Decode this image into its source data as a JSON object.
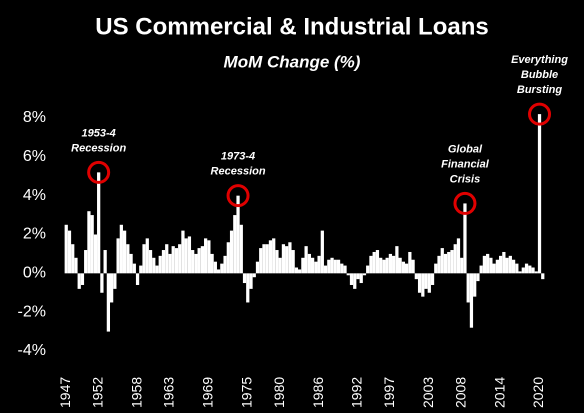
{
  "chart_data": {
    "type": "bar",
    "title": "US Commercial & Industrial Loans",
    "subtitle": "MoM Change (%)",
    "x": [
      1947,
      1947.5,
      1948,
      1948.5,
      1949,
      1949.5,
      1950,
      1950.5,
      1951,
      1951.5,
      1952,
      1952.5,
      1953,
      1953.5,
      1954,
      1954.5,
      1955,
      1955.5,
      1956,
      1956.5,
      1957,
      1957.5,
      1958,
      1958.5,
      1959,
      1959.5,
      1960,
      1960.5,
      1961,
      1961.5,
      1962,
      1962.5,
      1963,
      1963.5,
      1964,
      1964.5,
      1965,
      1965.5,
      1966,
      1966.5,
      1967,
      1967.5,
      1968,
      1968.5,
      1969,
      1969.5,
      1970,
      1970.5,
      1971,
      1971.5,
      1972,
      1972.5,
      1973,
      1973.5,
      1974,
      1974.5,
      1975,
      1975.5,
      1976,
      1976.5,
      1977,
      1977.5,
      1978,
      1978.5,
      1979,
      1979.5,
      1980,
      1980.5,
      1981,
      1981.5,
      1982,
      1982.5,
      1983,
      1983.5,
      1984,
      1984.5,
      1985,
      1985.5,
      1986,
      1986.5,
      1987,
      1987.5,
      1988,
      1988.5,
      1989,
      1989.5,
      1990,
      1990.5,
      1991,
      1991.5,
      1992,
      1992.5,
      1993,
      1993.5,
      1994,
      1994.5,
      1995,
      1995.5,
      1996,
      1996.5,
      1997,
      1997.5,
      1998,
      1998.5,
      1999,
      1999.5,
      2000,
      2000.5,
      2001,
      2001.5,
      2002,
      2002.5,
      2003,
      2003.5,
      2004,
      2004.5,
      2005,
      2005.5,
      2006,
      2006.5,
      2007,
      2007.5,
      2008,
      2008.5,
      2009,
      2009.5,
      2010,
      2010.5,
      2011,
      2011.5,
      2012,
      2012.5,
      2013,
      2013.5,
      2014,
      2014.5,
      2015,
      2015.5,
      2016,
      2016.5,
      2017,
      2017.5,
      2018,
      2018.5,
      2019,
      2019.5,
      2020,
      2020.5
    ],
    "values": [
      2.5,
      2.2,
      1.5,
      0.8,
      -0.8,
      -0.6,
      1.2,
      3.2,
      3.0,
      2.0,
      5.2,
      -1.0,
      1.2,
      -3.0,
      -1.5,
      -0.8,
      1.8,
      2.5,
      2.2,
      1.5,
      1.0,
      0.5,
      -0.6,
      0.4,
      1.5,
      1.8,
      1.2,
      0.8,
      0.4,
      0.9,
      1.2,
      1.5,
      1.0,
      1.4,
      1.3,
      1.5,
      2.2,
      1.8,
      1.9,
      1.2,
      1.0,
      1.3,
      1.4,
      1.8,
      1.7,
      1.0,
      0.6,
      0.2,
      0.5,
      0.9,
      1.6,
      2.2,
      3.0,
      4.0,
      2.5,
      -0.5,
      -1.5,
      -0.8,
      -0.2,
      0.6,
      1.3,
      1.5,
      1.5,
      1.7,
      1.8,
      1.2,
      0.8,
      1.5,
      1.4,
      1.6,
      1.2,
      0.3,
      0.2,
      0.8,
      1.4,
      1.0,
      0.8,
      0.6,
      0.9,
      2.2,
      0.4,
      0.7,
      0.8,
      0.7,
      0.7,
      0.5,
      0.4,
      -0.1,
      -0.6,
      -0.8,
      -0.3,
      -0.5,
      -0.1,
      0.4,
      0.9,
      1.1,
      1.2,
      0.8,
      0.7,
      0.8,
      1.0,
      0.9,
      1.4,
      0.8,
      0.6,
      0.5,
      1.1,
      0.7,
      -0.3,
      -1.0,
      -1.2,
      -0.8,
      -1.0,
      -0.6,
      0.5,
      0.9,
      1.3,
      1.0,
      1.1,
      1.2,
      1.5,
      1.8,
      0.8,
      3.6,
      -1.5,
      -2.8,
      -1.2,
      -0.4,
      0.4,
      0.9,
      1.0,
      0.8,
      0.5,
      0.7,
      0.9,
      1.1,
      0.8,
      0.9,
      0.7,
      0.5,
      0.1,
      0.3,
      0.5,
      0.4,
      0.3,
      0.1,
      8.2,
      -0.3
    ],
    "color": "#ffffff",
    "xlim": [
      1946.5,
      2021
    ],
    "xticks": [
      1947,
      1952,
      1958,
      1963,
      1969,
      1975,
      1980,
      1986,
      1992,
      1997,
      2003,
      2008,
      2014,
      2020
    ],
    "ylim": [
      -4,
      8
    ],
    "yticks": [
      {
        "value": -4,
        "label": "-4%"
      },
      {
        "value": -2,
        "label": "-2%"
      },
      {
        "value": 0,
        "label": "0%"
      },
      {
        "value": 2,
        "label": "2%"
      },
      {
        "value": 4,
        "label": "4%"
      },
      {
        "value": 6,
        "label": "6%"
      },
      {
        "value": 8,
        "label": "8%"
      }
    ],
    "annotations": [
      {
        "lines": [
          "1953-4",
          "Recession"
        ],
        "x": 1952,
        "y": 5.2,
        "color": "#e00000"
      },
      {
        "lines": [
          "1973-4",
          "Recession"
        ],
        "x": 1973.5,
        "y": 4.0,
        "color": "#e00000"
      },
      {
        "lines": [
          "Global",
          "Financial",
          "Crisis"
        ],
        "x": 2008.5,
        "y": 3.6,
        "color": "#e00000"
      },
      {
        "lines": [
          "Everything",
          "Bubble",
          "Bursting"
        ],
        "x": 2020,
        "y": 8.2,
        "color": "#e00000"
      }
    ]
  }
}
